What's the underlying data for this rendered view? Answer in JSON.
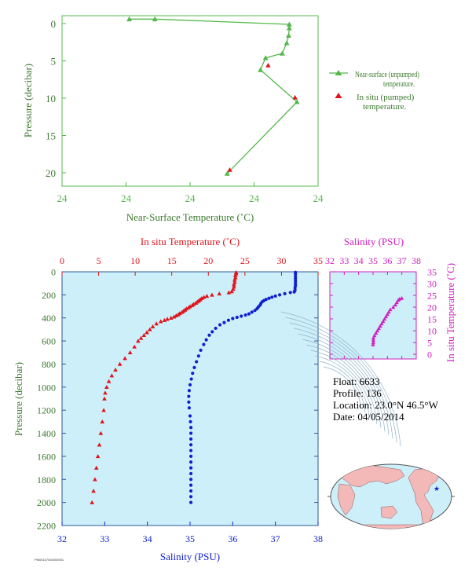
{
  "colors": {
    "green": "#55b84c",
    "red": "#e0141b",
    "blue": "#1020d0",
    "magenta": "#d020c0",
    "axis_text": "#3b7a2e",
    "plot_bg": "#cdeffa"
  },
  "float_info": {
    "float_line": "Float:  6633",
    "profile_line": "Profile:  136",
    "location_line": "Location:  23.0°N  46.5°W",
    "date_line": "Date:  04/05/2014"
  },
  "footer_code": "PM00107040000001",
  "map": {
    "marker": "star",
    "marker_color": "#1020d0"
  },
  "chart_data": [
    {
      "id": "near_surface",
      "type": "line",
      "xlabel": "Near-Surface Temperature (˚C)",
      "ylabel": "Pressure (decibar)",
      "x_tick_labels": [
        "24",
        "24",
        "24",
        "24",
        "24"
      ],
      "y_ticks": [
        0,
        5,
        10,
        15,
        20
      ],
      "x_axis_min": 23.4,
      "x_axis_max": 23.6,
      "ylim": [
        0,
        22
      ],
      "series": [
        {
          "name": "Near-surface (unpumped) temperature.",
          "marker": "triangle",
          "points": [
            {
              "x": 23.4525,
              "y": -0.6
            },
            {
              "x": 23.4725,
              "y": -0.6
            },
            {
              "x": 23.5775,
              "y": 0.1
            },
            {
              "x": 23.5775,
              "y": 0.6
            },
            {
              "x": 23.577,
              "y": 1.6
            },
            {
              "x": 23.5755,
              "y": 2.6
            },
            {
              "x": 23.572,
              "y": 4.0
            },
            {
              "x": 23.559,
              "y": 4.6
            },
            {
              "x": 23.555,
              "y": 6.2
            },
            {
              "x": 23.5835,
              "y": 10.5
            },
            {
              "x": 23.529,
              "y": 20.1
            }
          ]
        },
        {
          "name": "In situ (pumped) temperature.",
          "marker": "triangle",
          "points": [
            {
              "x": 23.561,
              "y": 5.6
            },
            {
              "x": 23.582,
              "y": 9.9
            },
            {
              "x": 23.531,
              "y": 19.6
            }
          ]
        }
      ]
    },
    {
      "id": "profile",
      "type": "scatter",
      "title": "In situ Temperature (˚C)",
      "xlabel": "Salinity (PSU)",
      "ylabel": "Pressure (decibar)",
      "temperature_axis": [
        0,
        35
      ],
      "temperature_ticks": [
        0,
        5,
        10,
        15,
        20,
        25,
        30,
        35
      ],
      "salinity_axis": [
        32,
        38
      ],
      "salinity_ticks": [
        32,
        33,
        34,
        35,
        36,
        37,
        38
      ],
      "pressure_axis": [
        0,
        2200
      ],
      "pressure_ticks": [
        0,
        200,
        400,
        600,
        800,
        1000,
        1200,
        1400,
        1600,
        1800,
        2000,
        2200
      ],
      "series": [
        {
          "quantity": "temperature",
          "marker": "triangle",
          "points": [
            [
              23.8,
              5
            ],
            [
              23.8,
              15
            ],
            [
              23.7,
              30
            ],
            [
              23.7,
              50
            ],
            [
              23.6,
              70
            ],
            [
              23.6,
              90
            ],
            [
              23.5,
              110
            ],
            [
              23.5,
              130
            ],
            [
              23.4,
              150
            ],
            [
              23.2,
              170
            ],
            [
              22.8,
              180
            ],
            [
              21.5,
              190
            ],
            [
              20.5,
              200
            ],
            [
              19.8,
              210
            ],
            [
              19.4,
              220
            ],
            [
              19.1,
              230
            ],
            [
              18.9,
              240
            ],
            [
              18.7,
              250
            ],
            [
              18.5,
              260
            ],
            [
              18.3,
              270
            ],
            [
              18.0,
              280
            ],
            [
              17.8,
              290
            ],
            [
              17.5,
              300
            ],
            [
              17.3,
              310
            ],
            [
              17.0,
              320
            ],
            [
              16.8,
              330
            ],
            [
              16.6,
              340
            ],
            [
              16.4,
              350
            ],
            [
              16.1,
              360
            ],
            [
              15.9,
              370
            ],
            [
              15.6,
              380
            ],
            [
              15.3,
              390
            ],
            [
              14.9,
              400
            ],
            [
              14.4,
              410
            ],
            [
              14.0,
              420
            ],
            [
              13.5,
              430
            ],
            [
              12.9,
              450
            ],
            [
              12.4,
              475
            ],
            [
              12.0,
              500
            ],
            [
              11.6,
              525
            ],
            [
              11.2,
              550
            ],
            [
              10.8,
              575
            ],
            [
              10.4,
              600
            ],
            [
              9.9,
              650
            ],
            [
              9.3,
              700
            ],
            [
              8.6,
              750
            ],
            [
              7.9,
              800
            ],
            [
              7.3,
              850
            ],
            [
              6.8,
              900
            ],
            [
              6.4,
              950
            ],
            [
              6.1,
              1000
            ],
            [
              5.9,
              1050
            ],
            [
              5.8,
              1100
            ],
            [
              5.7,
              1200
            ],
            [
              5.5,
              1300
            ],
            [
              5.3,
              1400
            ],
            [
              5.1,
              1500
            ],
            [
              4.9,
              1600
            ],
            [
              4.7,
              1700
            ],
            [
              4.5,
              1800
            ],
            [
              4.3,
              1900
            ],
            [
              4.1,
              2000
            ]
          ]
        },
        {
          "quantity": "salinity",
          "marker": "circle",
          "points": [
            [
              37.47,
              5
            ],
            [
              37.47,
              20
            ],
            [
              37.47,
              40
            ],
            [
              37.47,
              60
            ],
            [
              37.47,
              80
            ],
            [
              37.47,
              100
            ],
            [
              37.47,
              120
            ],
            [
              37.46,
              140
            ],
            [
              37.46,
              160
            ],
            [
              37.44,
              175
            ],
            [
              37.35,
              180
            ],
            [
              37.22,
              190
            ],
            [
              37.1,
              200
            ],
            [
              37.0,
              210
            ],
            [
              36.92,
              220
            ],
            [
              36.85,
              230
            ],
            [
              36.78,
              240
            ],
            [
              36.73,
              250
            ],
            [
              36.69,
              260
            ],
            [
              36.66,
              275
            ],
            [
              36.64,
              290
            ],
            [
              36.6,
              305
            ],
            [
              36.57,
              320
            ],
            [
              36.52,
              335
            ],
            [
              36.45,
              350
            ],
            [
              36.38,
              365
            ],
            [
              36.3,
              375
            ],
            [
              36.2,
              385
            ],
            [
              36.1,
              395
            ],
            [
              36.0,
              405
            ],
            [
              35.9,
              420
            ],
            [
              35.8,
              440
            ],
            [
              35.7,
              460
            ],
            [
              35.6,
              490
            ],
            [
              35.52,
              520
            ],
            [
              35.45,
              550
            ],
            [
              35.38,
              590
            ],
            [
              35.32,
              630
            ],
            [
              35.25,
              680
            ],
            [
              35.2,
              730
            ],
            [
              35.15,
              780
            ],
            [
              35.1,
              830
            ],
            [
              35.06,
              880
            ],
            [
              35.03,
              930
            ],
            [
              35.0,
              980
            ],
            [
              34.98,
              1030
            ],
            [
              34.97,
              1080
            ],
            [
              34.97,
              1130
            ],
            [
              34.98,
              1180
            ],
            [
              35.0,
              1250
            ],
            [
              35.01,
              1300
            ],
            [
              35.02,
              1350
            ],
            [
              35.02,
              1400
            ],
            [
              35.02,
              1450
            ],
            [
              35.02,
              1500
            ],
            [
              35.02,
              1550
            ],
            [
              35.02,
              1600
            ],
            [
              35.02,
              1650
            ],
            [
              35.02,
              1700
            ],
            [
              35.02,
              1750
            ],
            [
              35.02,
              1800
            ],
            [
              35.02,
              1850
            ],
            [
              35.02,
              1900
            ],
            [
              35.02,
              1950
            ],
            [
              35.02,
              2000
            ]
          ]
        }
      ]
    },
    {
      "id": "ts_diagram",
      "type": "scatter",
      "title": "Salinity (PSU)",
      "ylabel": "In situ Temperature (˚C)",
      "x_ticks": [
        32,
        33,
        34,
        35,
        36,
        37,
        38
      ],
      "y_ticks": [
        0,
        5,
        10,
        15,
        20,
        25,
        30,
        35
      ],
      "xlim": [
        32,
        38
      ],
      "ylim": [
        -2,
        35
      ],
      "series": [
        {
          "marker": "triangle",
          "points": [
            [
              35.0,
              4.1
            ],
            [
              35.02,
              5.0
            ],
            [
              35.02,
              6.0
            ],
            [
              35.03,
              7.0
            ],
            [
              35.1,
              8.0
            ],
            [
              35.2,
              9.0
            ],
            [
              35.3,
              10.0
            ],
            [
              35.4,
              11.0
            ],
            [
              35.5,
              12.0
            ],
            [
              35.6,
              13.0
            ],
            [
              35.7,
              14.0
            ],
            [
              35.8,
              15.0
            ],
            [
              35.9,
              16.0
            ],
            [
              36.0,
              17.0
            ],
            [
              36.1,
              18.0
            ],
            [
              36.2,
              19.0
            ],
            [
              36.4,
              20.0
            ],
            [
              36.55,
              21.0
            ],
            [
              36.65,
              22.0
            ],
            [
              36.75,
              23.0
            ],
            [
              36.85,
              23.5
            ],
            [
              37.0,
              23.8
            ]
          ]
        }
      ]
    }
  ]
}
